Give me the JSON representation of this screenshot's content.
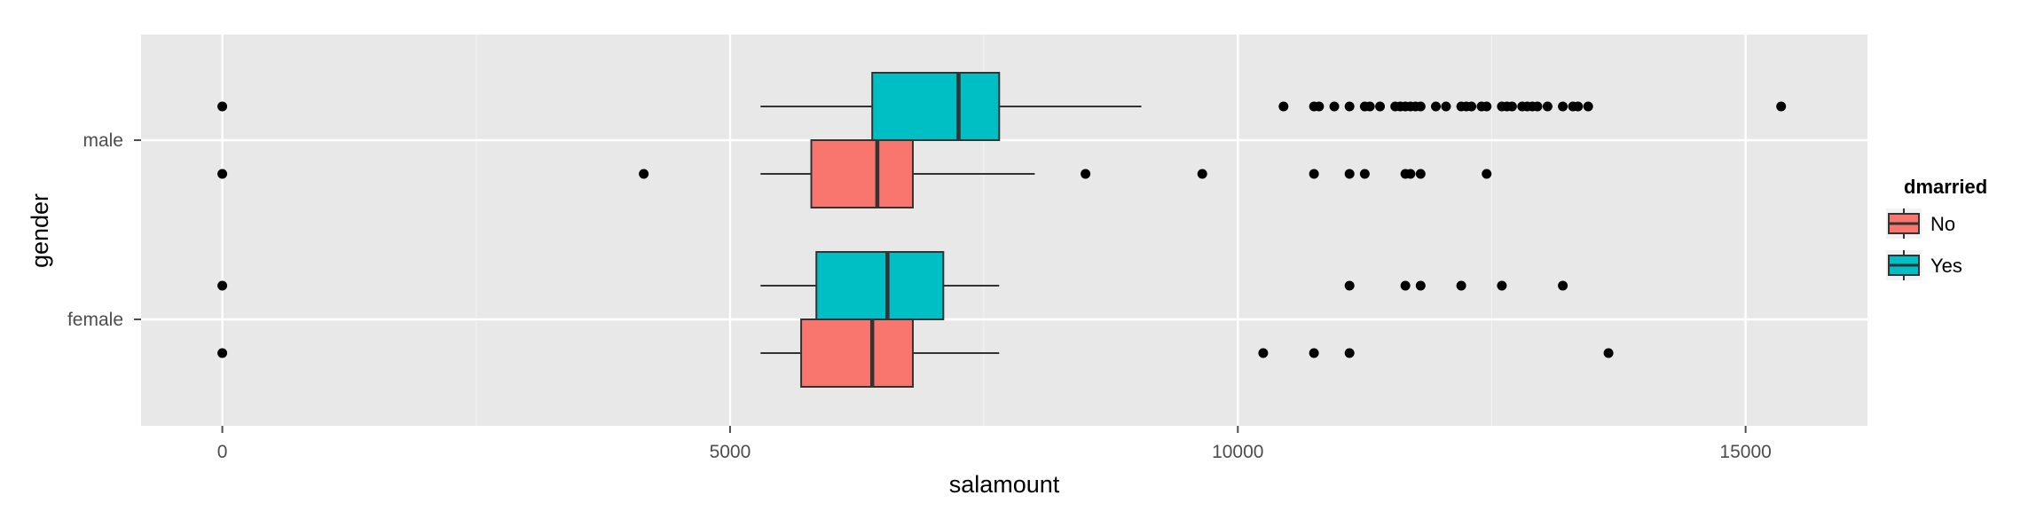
{
  "chart_data": {
    "type": "boxplot",
    "orientation": "horizontal",
    "xlabel": "salamount",
    "ylabel": "gender",
    "xlim": [
      -800,
      16200
    ],
    "x_ticks": [
      0,
      5000,
      10000,
      15000
    ],
    "x_tick_labels": [
      "0",
      "5000",
      "10000",
      "15000"
    ],
    "categories": [
      "male",
      "female"
    ],
    "grid": true,
    "legend": {
      "title": "dmarried",
      "position": "right",
      "entries": [
        {
          "label": "No",
          "color": "#F8766D"
        },
        {
          "label": "Yes",
          "color": "#00BFC4"
        }
      ]
    },
    "series": [
      {
        "name": "No",
        "color": "#F8766D",
        "boxes": [
          {
            "category": "male",
            "whisker_low": 5300,
            "q1": 5800,
            "median": 6450,
            "q3": 6800,
            "whisker_high": 8000,
            "outliers": [
              0,
              4150,
              8500,
              9650,
              10750,
              11100,
              11250,
              11650,
              11700,
              11800,
              12450
            ]
          },
          {
            "category": "female",
            "whisker_low": 5300,
            "q1": 5700,
            "median": 6400,
            "q3": 6800,
            "whisker_high": 7650,
            "outliers": [
              0,
              10250,
              10750,
              11100,
              13650
            ]
          }
        ]
      },
      {
        "name": "Yes",
        "color": "#00BFC4",
        "boxes": [
          {
            "category": "male",
            "whisker_low": 5300,
            "q1": 6400,
            "median": 7250,
            "q3": 7650,
            "whisker_high": 9050,
            "outliers": [
              0,
              10450,
              10750,
              10800,
              10950,
              11100,
              11250,
              11300,
              11400,
              11550,
              11600,
              11650,
              11700,
              11750,
              11800,
              11950,
              12050,
              12200,
              12250,
              12300,
              12400,
              12450,
              12600,
              12650,
              12700,
              12800,
              12850,
              12900,
              12950,
              13050,
              13200,
              13300,
              13350,
              13450,
              15350
            ]
          },
          {
            "category": "female",
            "whisker_low": 5300,
            "q1": 5850,
            "median": 6550,
            "q3": 7100,
            "whisker_high": 7650,
            "outliers": [
              0,
              11100,
              11650,
              11800,
              12200,
              12600,
              13200
            ]
          }
        ]
      }
    ]
  }
}
